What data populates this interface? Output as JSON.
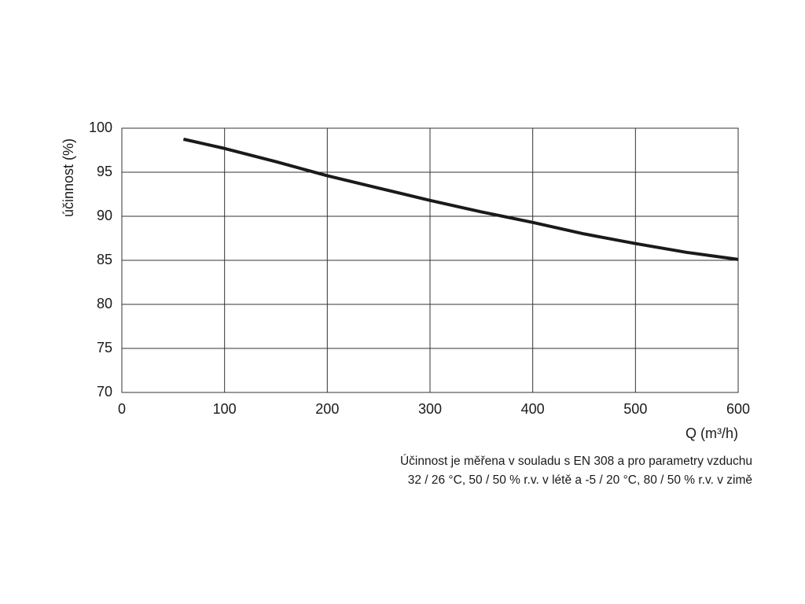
{
  "chart_data": {
    "type": "line",
    "x_label": "Q (m³/h)",
    "y_label": "účinnost (%)",
    "note": [
      "Účinnost je měřena v souladu s EN 308 a pro parametry vzduchu",
      "32 / 26 °C, 50 / 50 % r.v. v létě a -5 / 20 °C, 80 / 50 % r.v. v zimě"
    ],
    "x": [
      60,
      100,
      150,
      200,
      250,
      300,
      350,
      400,
      450,
      500,
      550,
      600
    ],
    "series": [
      {
        "color": "#1a1a1a",
        "values": [
          98.75,
          97.7,
          96.2,
          94.6,
          93.2,
          91.8,
          90.5,
          89.3,
          88.0,
          86.9,
          85.9,
          85.1
        ]
      }
    ],
    "xlim": [
      0,
      600
    ],
    "xticks": [
      0,
      100,
      200,
      300,
      400,
      500,
      600
    ],
    "ylim": [
      70,
      100
    ],
    "yticks": [
      70,
      75,
      80,
      85,
      90,
      95,
      100
    ],
    "grid": true
  }
}
